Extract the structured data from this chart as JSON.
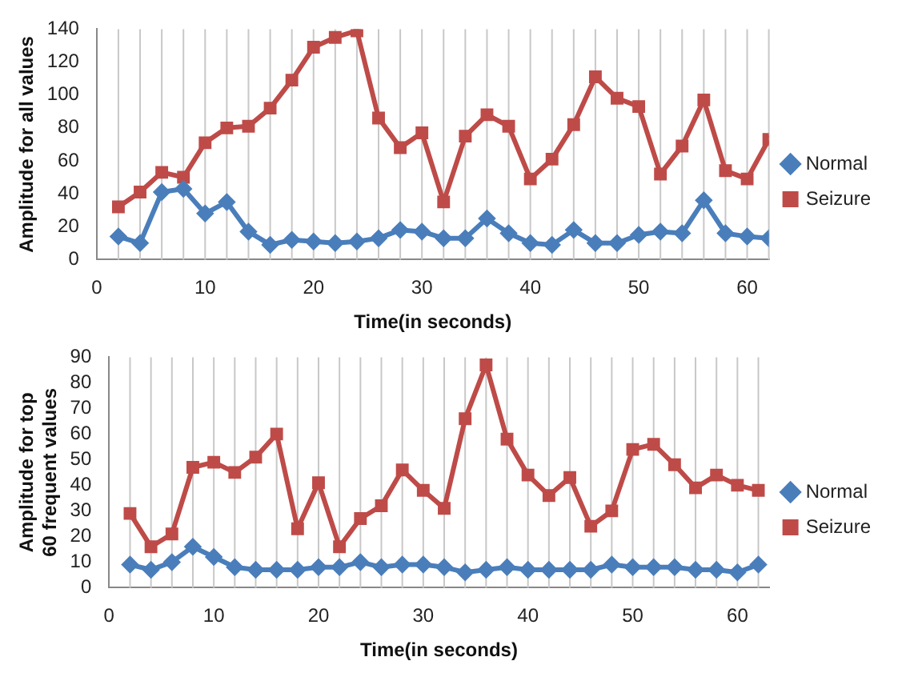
{
  "chart_data": [
    {
      "type": "line",
      "xlabel": "Time(in seconds)",
      "ylabel": "Amplitude for all values",
      "x": [
        2,
        4,
        6,
        8,
        10,
        12,
        14,
        16,
        18,
        20,
        22,
        24,
        26,
        28,
        30,
        32,
        34,
        36,
        38,
        40,
        42,
        44,
        46,
        48,
        50,
        52,
        54,
        56,
        58,
        60,
        62
      ],
      "xlim": [
        0,
        62
      ],
      "xticks": [
        0,
        10,
        20,
        30,
        40,
        50,
        60
      ],
      "ylim": [
        0,
        140
      ],
      "yticks": [
        0,
        20,
        40,
        60,
        80,
        100,
        120,
        140
      ],
      "grid": "x",
      "legend": "right",
      "series": [
        {
          "name": "Normal",
          "color": "#4a7ebb",
          "marker": "diamond",
          "values": [
            14,
            10,
            41,
            43,
            28,
            35,
            17,
            9,
            12,
            11,
            10,
            11,
            13,
            18,
            17,
            13,
            13,
            25,
            16,
            10,
            9,
            18,
            10,
            10,
            15,
            17,
            16,
            36,
            16,
            14,
            13
          ]
        },
        {
          "name": "Seizure",
          "color": "#be4b48",
          "marker": "square",
          "values": [
            32,
            41,
            53,
            50,
            71,
            80,
            81,
            92,
            109,
            129,
            135,
            139,
            86,
            68,
            77,
            35,
            75,
            88,
            81,
            49,
            61,
            82,
            111,
            98,
            93,
            52,
            69,
            97,
            54,
            49,
            73
          ]
        }
      ]
    },
    {
      "type": "line",
      "xlabel": "Time(in seconds)",
      "ylabel": "Amplitude for top 60 frequent values",
      "x": [
        2,
        4,
        6,
        8,
        10,
        12,
        14,
        16,
        18,
        20,
        22,
        24,
        26,
        28,
        30,
        32,
        34,
        36,
        38,
        40,
        42,
        44,
        46,
        48,
        50,
        52,
        54,
        56,
        58,
        60,
        62
      ],
      "xlim": [
        0,
        63
      ],
      "xticks": [
        0,
        10,
        20,
        30,
        40,
        50,
        60
      ],
      "ylim": [
        0,
        90
      ],
      "yticks": [
        0,
        10,
        20,
        30,
        40,
        50,
        60,
        70,
        80,
        90
      ],
      "grid": "x",
      "legend": "right",
      "series": [
        {
          "name": "Normal",
          "color": "#4a7ebb",
          "marker": "diamond",
          "values": [
            9,
            7,
            10,
            16,
            12,
            8,
            7,
            7,
            7,
            8,
            8,
            10,
            8,
            9,
            9,
            8,
            6,
            7,
            8,
            7,
            7,
            7,
            7,
            9,
            8,
            8,
            8,
            7,
            7,
            6,
            9
          ]
        },
        {
          "name": "Seizure",
          "color": "#be4b48",
          "marker": "square",
          "values": [
            29,
            16,
            21,
            47,
            49,
            45,
            51,
            60,
            23,
            41,
            16,
            27,
            32,
            46,
            38,
            31,
            66,
            87,
            58,
            44,
            36,
            43,
            24,
            30,
            54,
            56,
            48,
            39,
            44,
            40,
            38
          ]
        }
      ]
    }
  ]
}
